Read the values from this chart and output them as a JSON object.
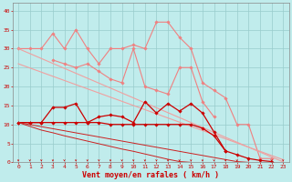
{
  "x": [
    0,
    1,
    2,
    3,
    4,
    5,
    6,
    7,
    8,
    9,
    10,
    11,
    12,
    13,
    14,
    15,
    16,
    17,
    18,
    19,
    20,
    21,
    22,
    23
  ],
  "lines": [
    {
      "label": "pink_marker_top",
      "color": "#f08080",
      "linewidth": 0.8,
      "marker": "D",
      "markersize": 1.8,
      "y": [
        30,
        30,
        30,
        34,
        30,
        35,
        30,
        26,
        30,
        30,
        31,
        30,
        37,
        37,
        33,
        30,
        21,
        19,
        17,
        10,
        10,
        1,
        1,
        null
      ]
    },
    {
      "label": "pink_marker_mid",
      "color": "#f08080",
      "linewidth": 0.8,
      "marker": "D",
      "markersize": 1.8,
      "y": [
        null,
        null,
        null,
        27,
        26,
        25,
        26,
        24,
        22,
        21,
        30,
        20,
        19,
        18,
        25,
        25,
        16,
        12,
        null,
        null,
        null,
        null,
        null,
        null
      ]
    },
    {
      "label": "pink_diag1",
      "color": "#f0a0a0",
      "linewidth": 0.8,
      "marker": null,
      "y": [
        30,
        28.7,
        27.4,
        26.1,
        24.8,
        23.5,
        22.2,
        20.9,
        19.6,
        18.3,
        17.0,
        15.7,
        14.4,
        13.1,
        11.8,
        10.5,
        9.2,
        7.9,
        6.6,
        5.3,
        4.0,
        2.7,
        1.4,
        0.1
      ]
    },
    {
      "label": "pink_diag2",
      "color": "#f0a0a0",
      "linewidth": 0.8,
      "marker": null,
      "y": [
        26,
        24.9,
        23.8,
        22.7,
        21.6,
        20.5,
        19.4,
        18.3,
        17.2,
        16.1,
        15.0,
        13.9,
        12.8,
        11.7,
        10.6,
        9.5,
        8.4,
        7.3,
        6.2,
        5.1,
        4.0,
        2.9,
        1.8,
        0.7
      ]
    },
    {
      "label": "dark_red_marker_upper",
      "color": "#cc0000",
      "linewidth": 0.9,
      "marker": "D",
      "markersize": 1.8,
      "y": [
        10.5,
        10.5,
        10.5,
        14.5,
        14.5,
        15.5,
        10.5,
        12,
        12.5,
        12,
        10.5,
        16,
        13,
        15.5,
        13.5,
        15.5,
        13,
        8,
        3,
        null,
        null,
        null,
        null,
        null
      ]
    },
    {
      "label": "dark_red_marker_flat",
      "color": "#cc0000",
      "linewidth": 0.9,
      "marker": "D",
      "markersize": 1.8,
      "y": [
        10.5,
        10.5,
        10.5,
        10.5,
        10.5,
        10.5,
        10.5,
        10.5,
        10,
        10,
        10,
        10,
        10,
        10,
        10,
        10,
        9,
        7,
        3,
        2,
        1,
        0.5,
        0.2,
        null
      ]
    },
    {
      "label": "dark_red_diag1",
      "color": "#cc2020",
      "linewidth": 0.7,
      "marker": null,
      "y": [
        10.5,
        9.96,
        9.41,
        8.87,
        8.33,
        7.78,
        7.24,
        6.7,
        6.15,
        5.61,
        5.07,
        4.52,
        3.98,
        3.44,
        2.89,
        2.35,
        1.81,
        1.26,
        0.72,
        0.18,
        0,
        null,
        null,
        null
      ]
    },
    {
      "label": "dark_red_diag2",
      "color": "#cc2020",
      "linewidth": 0.7,
      "marker": null,
      "y": [
        10.5,
        9.5,
        8.5,
        7.8,
        7.0,
        6.3,
        5.6,
        4.9,
        4.2,
        3.5,
        2.9,
        2.2,
        1.5,
        0.8,
        0.2,
        0,
        null,
        null,
        null,
        null,
        null,
        null,
        null,
        null
      ]
    }
  ],
  "xlabel": "Vent moyen/en rafales ( km/h )",
  "xlabel_color": "#cc0000",
  "xlabel_fontsize": 6,
  "ylabel_ticks": [
    0,
    5,
    10,
    15,
    20,
    25,
    30,
    35,
    40
  ],
  "xtick_labels": [
    "0",
    "1",
    "2",
    "3",
    "4",
    "5",
    "6",
    "7",
    "8",
    "9",
    "10",
    "11",
    "12",
    "13",
    "14",
    "15",
    "16",
    "17",
    "18",
    "19",
    "20",
    "21",
    "22",
    "23"
  ],
  "ylim": [
    0,
    42
  ],
  "xlim": [
    -0.5,
    23.5
  ],
  "bg_color": "#c0ecec",
  "grid_color": "#99cccc",
  "tick_color": "#cc0000",
  "tick_fontsize": 4.5,
  "figwidth": 3.2,
  "figheight": 2.0,
  "dpi": 100
}
